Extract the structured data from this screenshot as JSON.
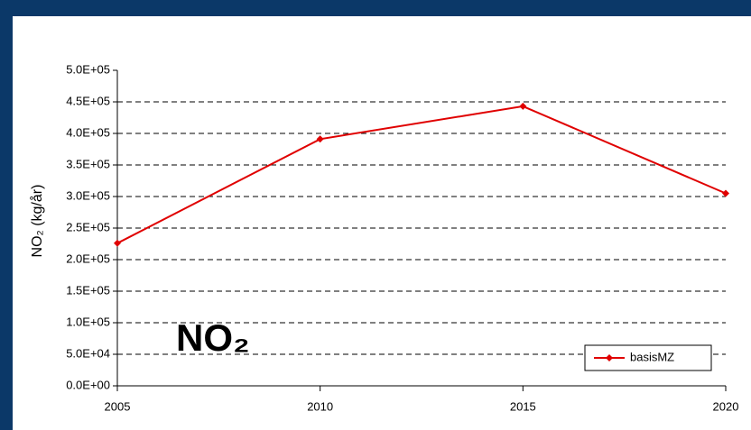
{
  "chart_data": {
    "type": "line",
    "y_label": "NO₂ (kg/år)",
    "annotation": "NO₂",
    "x": [
      2005,
      2010,
      2015,
      2020
    ],
    "series": [
      {
        "name": "basisMZ",
        "color": "#e00000",
        "values": [
          226000,
          391000,
          443000,
          305000
        ]
      }
    ],
    "xlim": [
      2005,
      2020
    ],
    "xticks": [
      2005,
      2010,
      2015,
      2020
    ],
    "ylim": [
      0,
      500000
    ],
    "yticks": [
      {
        "value": 0,
        "label": "0.0E+00"
      },
      {
        "value": 50000,
        "label": "5.0E+04"
      },
      {
        "value": 100000,
        "label": "1.0E+05"
      },
      {
        "value": 150000,
        "label": "1.5E+05"
      },
      {
        "value": 200000,
        "label": "2.0E+05"
      },
      {
        "value": 250000,
        "label": "2.5E+05"
      },
      {
        "value": 300000,
        "label": "3.0E+05"
      },
      {
        "value": 350000,
        "label": "3.5E+05"
      },
      {
        "value": 400000,
        "label": "4.0E+05"
      },
      {
        "value": 450000,
        "label": "4.5E+05"
      },
      {
        "value": 500000,
        "label": "5.0E+05"
      }
    ],
    "grid": true,
    "legend": "lower right"
  }
}
